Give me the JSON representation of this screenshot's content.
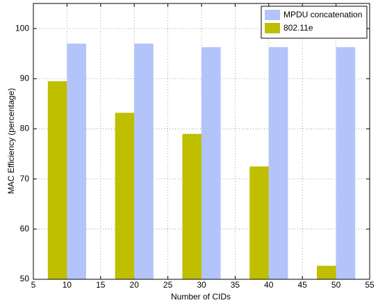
{
  "chart_data": {
    "type": "bar",
    "xlabel": "Number of CIDs",
    "ylabel": "MAC Efficiency (percentage)",
    "x": [
      10,
      20,
      30,
      40,
      50
    ],
    "series": [
      {
        "name": "MPDU concatenation",
        "color": "#b3c4fb",
        "values": [
          97,
          97,
          96.3,
          96.3,
          96.3
        ]
      },
      {
        "name": "802.11e",
        "color": "#bfbf00",
        "values": [
          89.5,
          83.2,
          79,
          72.5,
          52.7
        ]
      }
    ],
    "xlim": [
      5,
      55
    ],
    "xticks": [
      5,
      10,
      15,
      20,
      25,
      30,
      35,
      40,
      45,
      50,
      55
    ],
    "ylim": [
      50,
      105
    ],
    "yticks": [
      50,
      60,
      70,
      80,
      90,
      100
    ],
    "grid": true,
    "legend": "northeast"
  }
}
